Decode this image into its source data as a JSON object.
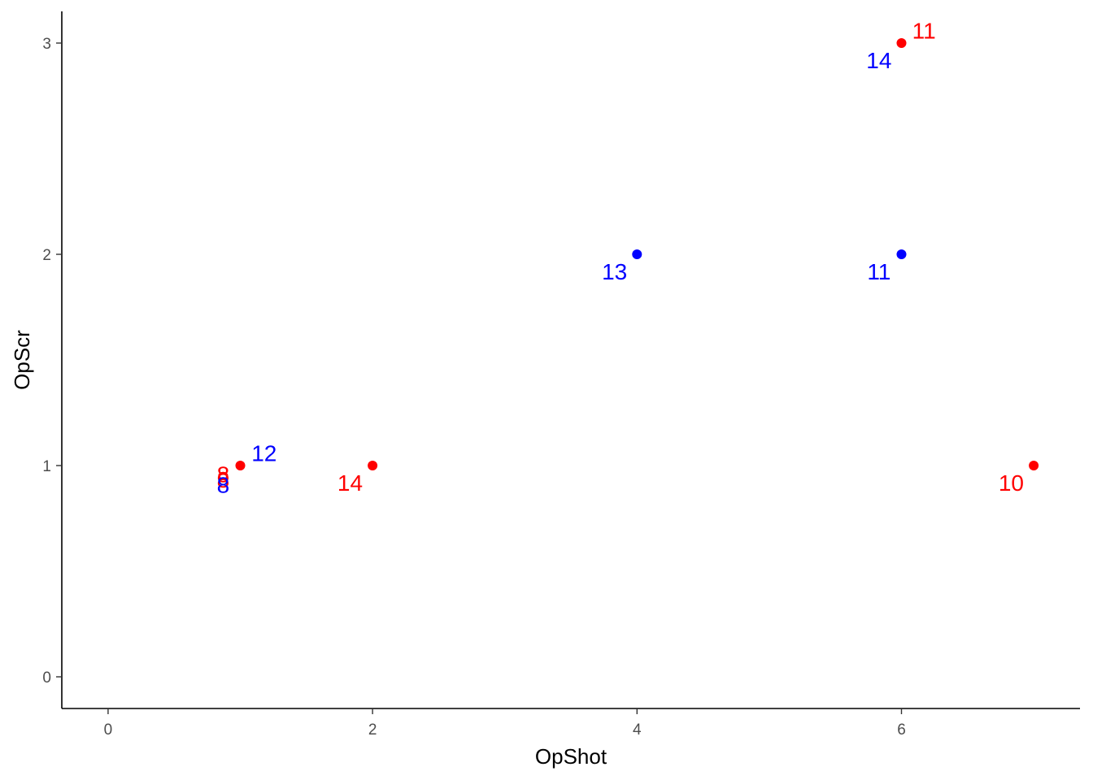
{
  "chart_data": {
    "type": "scatter",
    "title": "",
    "xlabel": "OpShot",
    "ylabel": "OpScr",
    "xlim": [
      -0.35,
      7.35
    ],
    "ylim": [
      -0.15,
      3.15
    ],
    "x_ticks": [
      0,
      2,
      4,
      6
    ],
    "y_ticks": [
      0,
      1,
      2,
      3
    ],
    "grid": false,
    "legend": "none",
    "colors": {
      "red": "#ff0000",
      "blue": "#0000ff",
      "axis": "#000000",
      "tick_text": "#4d4d4d"
    },
    "points": [
      {
        "x": 1,
        "y": 1,
        "color": "#ff0000"
      },
      {
        "x": 2,
        "y": 1,
        "color": "#ff0000"
      },
      {
        "x": 4,
        "y": 2,
        "color": "#0000ff"
      },
      {
        "x": 6,
        "y": 2,
        "color": "#0000ff"
      },
      {
        "x": 6,
        "y": 3,
        "color": "#ff0000"
      },
      {
        "x": 7,
        "y": 1,
        "color": "#ff0000"
      }
    ],
    "labels": [
      {
        "text": "12",
        "x": 1.18,
        "y": 1.06,
        "color": "#0000ff"
      },
      {
        "text": "14",
        "x": 1.83,
        "y": 0.92,
        "color": "#ff0000"
      },
      {
        "text": "13",
        "x": 3.83,
        "y": 1.92,
        "color": "#0000ff"
      },
      {
        "text": "11",
        "x": 5.83,
        "y": 1.92,
        "color": "#0000ff"
      },
      {
        "text": "14",
        "x": 5.83,
        "y": 2.92,
        "color": "#0000ff"
      },
      {
        "text": "11",
        "x": 6.17,
        "y": 3.06,
        "color": "#ff0000"
      },
      {
        "text": "10",
        "x": 6.83,
        "y": 0.92,
        "color": "#ff0000"
      },
      {
        "text": "8",
        "x": 0.87,
        "y": 0.96,
        "color": "#ff0000"
      },
      {
        "text": "8",
        "x": 0.87,
        "y": 0.935,
        "color": "#ff0000"
      },
      {
        "text": "8",
        "x": 0.87,
        "y": 0.91,
        "color": "#0000ff"
      }
    ]
  }
}
